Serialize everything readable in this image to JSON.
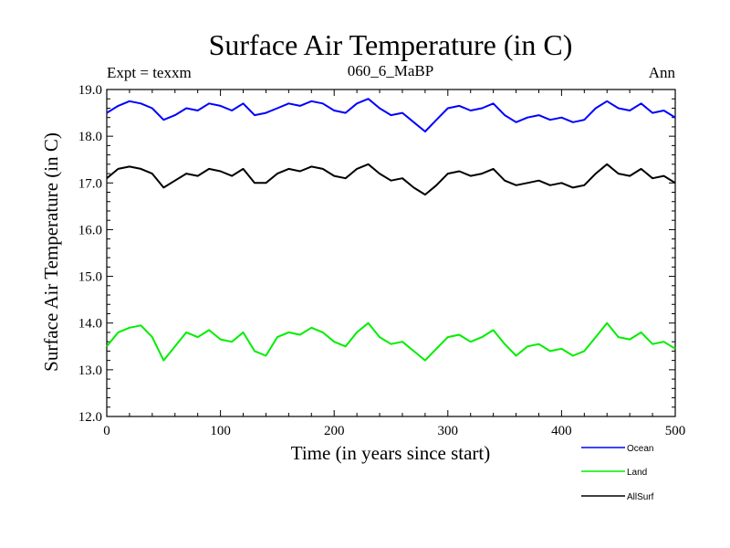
{
  "chart_data": {
    "type": "line",
    "title": "Surface Air Temperature (in C)",
    "subtitle_left": "Expt = texxm",
    "subtitle_center": "060_6_MaBP",
    "subtitle_right": "Ann",
    "xlabel": "Time (in years since start)",
    "ylabel": "Surface Air Temperature (in C)",
    "xlim": [
      0,
      500
    ],
    "ylim": [
      12.0,
      19.0
    ],
    "xticks": [
      "0",
      "100",
      "200",
      "300",
      "400",
      "500"
    ],
    "yticks": [
      "12.0",
      "13.0",
      "14.0",
      "15.0",
      "16.0",
      "17.0",
      "18.0",
      "19.0"
    ],
    "grid": false,
    "legend_position": "bottom-right",
    "x": [
      0,
      10,
      20,
      30,
      40,
      50,
      60,
      70,
      80,
      90,
      100,
      110,
      120,
      130,
      140,
      150,
      160,
      170,
      180,
      190,
      200,
      210,
      220,
      230,
      240,
      250,
      260,
      270,
      280,
      290,
      300,
      310,
      320,
      330,
      340,
      350,
      360,
      370,
      380,
      390,
      400,
      410,
      420,
      430,
      440,
      450,
      460,
      470,
      480,
      490,
      500
    ],
    "series": [
      {
        "name": "Ocean",
        "color": "#0000ff",
        "values": [
          18.5,
          18.65,
          18.75,
          18.7,
          18.6,
          18.35,
          18.45,
          18.6,
          18.55,
          18.7,
          18.65,
          18.55,
          18.7,
          18.45,
          18.5,
          18.6,
          18.7,
          18.65,
          18.75,
          18.7,
          18.55,
          18.5,
          18.7,
          18.8,
          18.6,
          18.45,
          18.5,
          18.3,
          18.1,
          18.35,
          18.6,
          18.65,
          18.55,
          18.6,
          18.7,
          18.45,
          18.3,
          18.4,
          18.45,
          18.35,
          18.4,
          18.3,
          18.35,
          18.6,
          18.75,
          18.6,
          18.55,
          18.7,
          18.5,
          18.55,
          18.4
        ]
      },
      {
        "name": "Land",
        "color": "#00ee00",
        "values": [
          13.5,
          13.8,
          13.9,
          13.95,
          13.7,
          13.2,
          13.5,
          13.8,
          13.7,
          13.85,
          13.65,
          13.6,
          13.8,
          13.4,
          13.3,
          13.7,
          13.8,
          13.75,
          13.9,
          13.8,
          13.6,
          13.5,
          13.8,
          14.0,
          13.7,
          13.55,
          13.6,
          13.4,
          13.2,
          13.45,
          13.7,
          13.75,
          13.6,
          13.7,
          13.85,
          13.55,
          13.3,
          13.5,
          13.55,
          13.4,
          13.45,
          13.3,
          13.4,
          13.7,
          14.0,
          13.7,
          13.65,
          13.8,
          13.55,
          13.6,
          13.45
        ]
      },
      {
        "name": "AllSurf",
        "color": "#000000",
        "values": [
          17.1,
          17.3,
          17.35,
          17.3,
          17.2,
          16.9,
          17.05,
          17.2,
          17.15,
          17.3,
          17.25,
          17.15,
          17.3,
          17.0,
          17.0,
          17.2,
          17.3,
          17.25,
          17.35,
          17.3,
          17.15,
          17.1,
          17.3,
          17.4,
          17.2,
          17.05,
          17.1,
          16.9,
          16.75,
          16.95,
          17.2,
          17.25,
          17.15,
          17.2,
          17.3,
          17.05,
          16.95,
          17.0,
          17.05,
          16.95,
          17.0,
          16.9,
          16.95,
          17.2,
          17.4,
          17.2,
          17.15,
          17.3,
          17.1,
          17.15,
          17.0
        ]
      }
    ]
  }
}
